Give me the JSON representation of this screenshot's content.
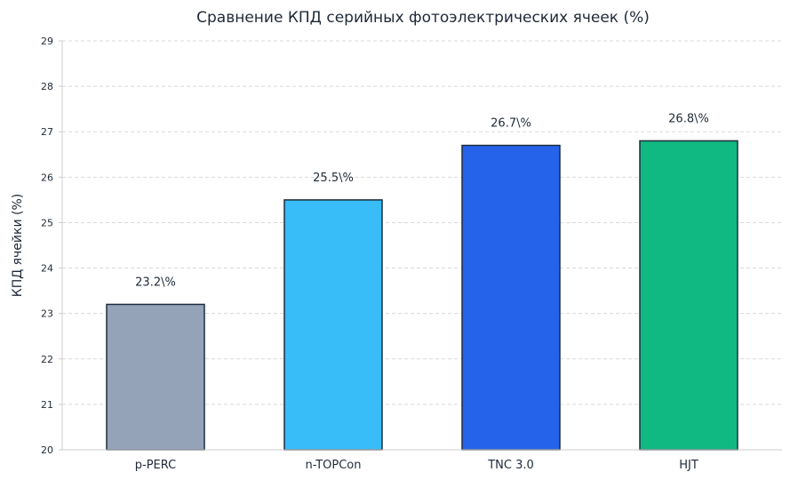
{
  "chart_data": {
    "type": "bar",
    "title": "Сравнение КПД серийных фотоэлектрических ячеек (%)",
    "xlabel": "",
    "ylabel": "КПД ячейки (%)",
    "ylim": [
      20,
      29
    ],
    "yticks": [
      20,
      21,
      22,
      23,
      24,
      25,
      26,
      27,
      28,
      29
    ],
    "grid": true,
    "categories": [
      "p-PERC",
      "n-TOPCon",
      "TNC 3.0",
      "HJT"
    ],
    "values": [
      23.2,
      25.5,
      26.7,
      26.8
    ],
    "data_labels": [
      "23.2\\%",
      "25.5\\%",
      "26.7\\%",
      "26.8\\%"
    ],
    "colors": [
      "#94a3b8",
      "#38bdf8",
      "#2563eb",
      "#10b981"
    ]
  }
}
